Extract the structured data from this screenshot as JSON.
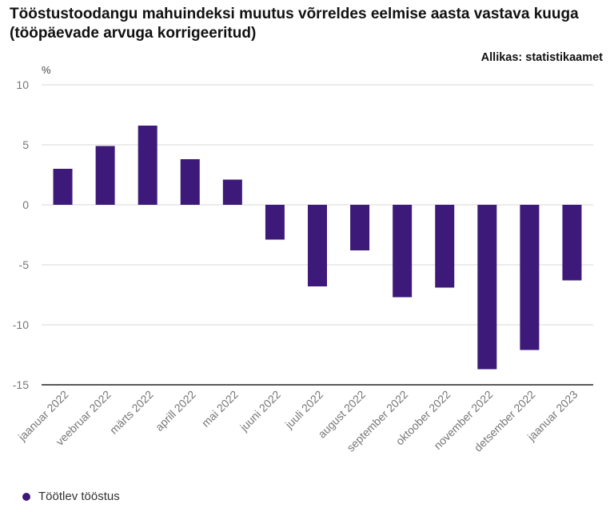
{
  "header": {
    "title": "Tööstustoodangu mahuindeksi muutus võrreldes eelmise aasta vastava kuuga (tööpäevade arvuga korrigeeritud)",
    "source": "Allikas: statistikaamet"
  },
  "chart_data": {
    "type": "bar",
    "title": "Tööstustoodangu mahuindeksi muutus võrreldes eelmise aasta vastava kuuga (tööpäevade arvuga korrigeeritud)",
    "ylabel": "%",
    "xlabel": "",
    "ylim": [
      -15,
      10
    ],
    "yticks": [
      10,
      5,
      0,
      -5,
      -10,
      -15
    ],
    "ytick_labels": [
      "10",
      "5",
      "0",
      "-5",
      "-10",
      "-15"
    ],
    "grid": true,
    "legend_position": "bottom-left",
    "categories": [
      "jaanuar 2022",
      "veebruar 2022",
      "märts 2022",
      "aprill 2022",
      "mai 2022",
      "juuni 2022",
      "juuli 2022",
      "august 2022",
      "september 2022",
      "oktoober 2022",
      "november 2022",
      "detsember 2022",
      "jaanuar 2023"
    ],
    "series": [
      {
        "name": "Töötlev tööstus",
        "color": "#3d1a7a",
        "values": [
          3.0,
          4.9,
          6.6,
          3.8,
          2.1,
          -2.9,
          -6.8,
          -3.8,
          -7.7,
          -6.9,
          -13.7,
          -12.1,
          -6.3
        ]
      }
    ]
  },
  "legend": {
    "label": "Töötlev tööstus",
    "color": "#3d1a7a"
  }
}
